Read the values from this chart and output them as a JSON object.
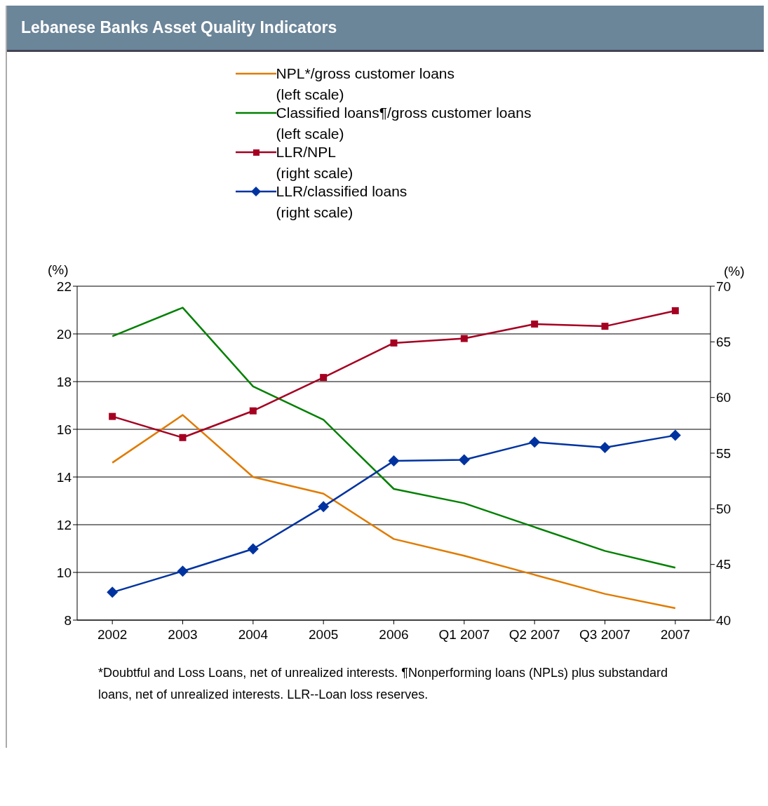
{
  "chart_data": {
    "type": "line",
    "title": "Lebanese Banks Asset Quality Indicators",
    "ylabel": "(%)",
    "y2label": "(%)",
    "categories": [
      "2002",
      "2003",
      "2004",
      "2005",
      "2006",
      "Q1 2007",
      "Q2 2007",
      "Q3 2007",
      "2007"
    ],
    "series": [
      {
        "name": "NPL*/gross customer loans\n(left scale)",
        "color": "#e07b00",
        "marker": "none",
        "values": [
          14.6,
          16.6,
          14.0,
          13.3,
          11.4,
          10.7,
          9.9,
          9.1,
          8.5
        ]
      },
      {
        "name": "Classified loans¶/gross customer loans\n(left scale)",
        "color": "#008000",
        "marker": "none",
        "values": [
          19.9,
          21.1,
          17.8,
          16.4,
          13.5,
          12.9,
          11.9,
          10.9,
          10.2
        ]
      },
      {
        "name": "LLR/NPL\n(right scale)",
        "color": "#a50021",
        "marker": "square",
        "axis": "y2",
        "values": [
          58.3,
          56.4,
          58.8,
          61.8,
          64.9,
          65.3,
          66.6,
          66.4,
          67.8
        ]
      },
      {
        "name": "LLR/classified loans\n(right scale)",
        "color": "#0033a0",
        "marker": "diamond",
        "axis": "y2",
        "values": [
          42.5,
          44.4,
          46.4,
          50.2,
          54.3,
          54.4,
          56.0,
          55.5,
          56.6
        ]
      }
    ],
    "ylim": [
      8,
      22
    ],
    "yticks": [
      8,
      10,
      12,
      14,
      16,
      18,
      20,
      22
    ],
    "y2lim": [
      40,
      70
    ],
    "y2ticks": [
      40,
      45,
      50,
      55,
      60,
      65,
      70
    ],
    "grid": "y",
    "legend": "top",
    "line_style": "solid",
    "annotations": [
      "*Doubtful and Loss Loans, net of unrealized interests. ¶Nonperforming loans (NPLs) plus substandard loans, net of unrealized interests. LLR--Loan loss reserves."
    ]
  }
}
